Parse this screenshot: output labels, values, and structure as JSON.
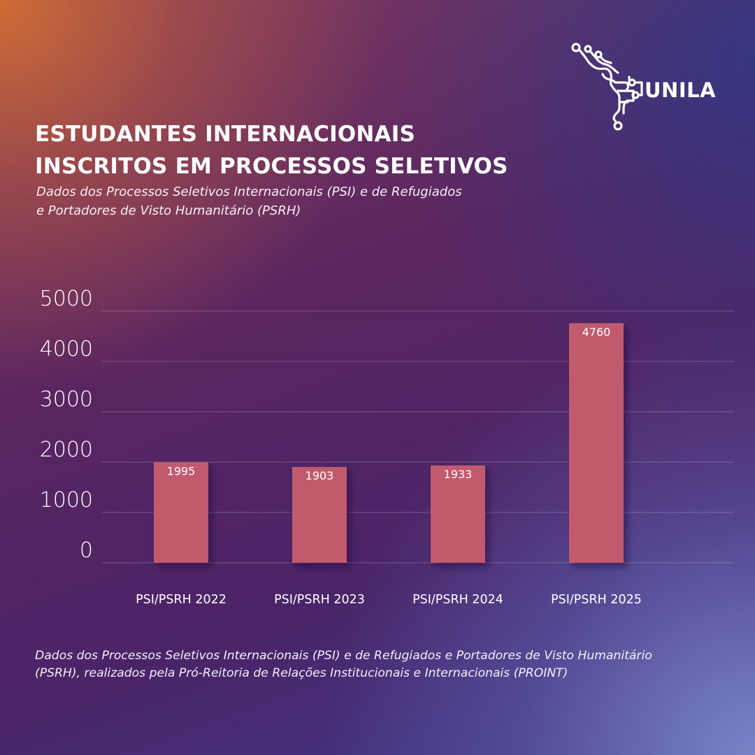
{
  "header": {
    "title_line1": "ESTUDANTES INTERNACIONAIS",
    "title_line2": "INSCRITOS EM PROCESSOS SELETIVOS",
    "subtitle_line1": "Dados dos Processos Seletivos Internacionais (PSI) e de Refugiados",
    "subtitle_line2": "e Portadores de Visto Humanitário (PSRH)"
  },
  "logo": {
    "text": "UNILA"
  },
  "chart_data": {
    "type": "bar",
    "categories": [
      "PSI/PSRH 2022",
      "PSI/PSRH 2023",
      "PSI/PSRH 2024",
      "PSI/PSRH 2025"
    ],
    "values": [
      1995,
      1903,
      1933,
      4760
    ],
    "ylim": [
      0,
      5000
    ],
    "yticks": [
      0,
      1000,
      2000,
      3000,
      4000,
      5000
    ],
    "grid": true,
    "bar_color": "#c25a6e"
  },
  "footnote": {
    "line1": "Dados dos Processos Seletivos Internacionais (PSI) e de Refugiados e Portadores de Visto Humanitário",
    "line2": "(PSRH), realizados pela Pró-Reitoria de Relações Institucionais e Internacionais (PROINT)"
  }
}
